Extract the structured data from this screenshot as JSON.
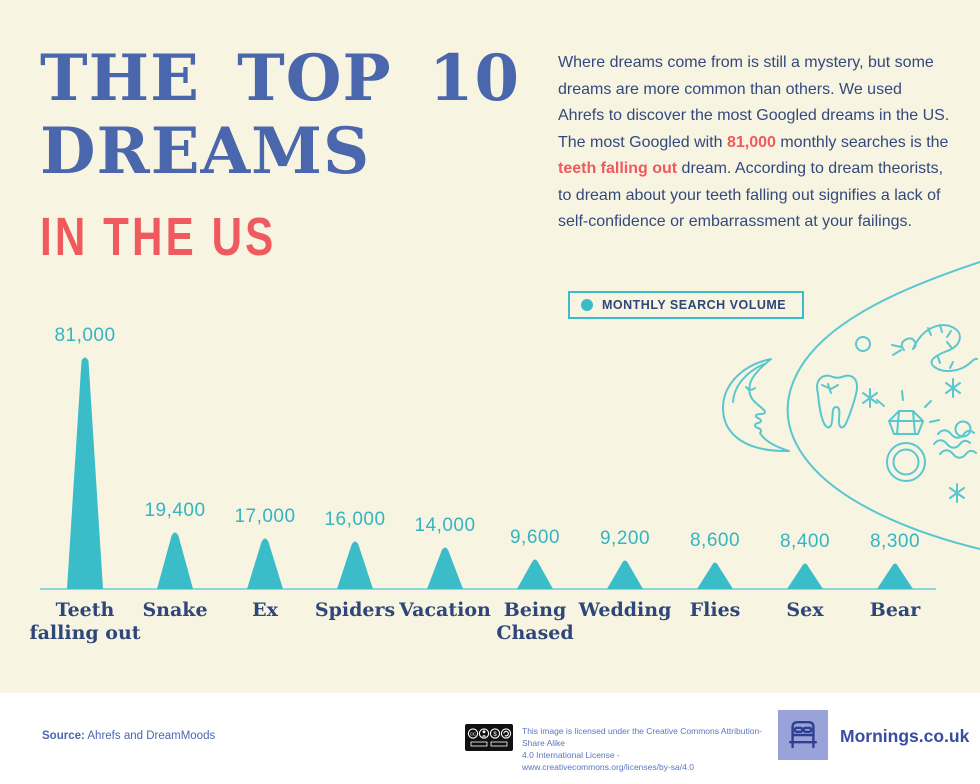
{
  "colors": {
    "background": "#f7f4e1",
    "footer_bg": "#ffffff",
    "title_blue": "#4a66ad",
    "accent_red": "#ee5a5e",
    "text_navy": "#2e4679",
    "teal": "#3bbcc9",
    "teal_line_art": "#5ac7d0",
    "brand_navy": "#3a4da0",
    "logo_periwinkle": "#99a3da",
    "license_blue": "#5b76c0"
  },
  "header": {
    "title_line1": "THE TOP 10",
    "title_line2": "DREAMS",
    "subtitle": "IN THE US"
  },
  "intro": {
    "p1": "Where dreams come from is still a mystery, but some dreams are more common than others. We used Ahrefs to discover the most Googled dreams in the US. The most Googled with ",
    "highlight1": "81,000",
    "p2": " monthly searches is the ",
    "highlight2": "teeth falling out",
    "p3": " dream. According to dream theorists, to dream about your teeth falling out signifies a lack of self-confidence or embarrassment at your failings."
  },
  "legend": {
    "label": "MONTHLY SEARCH VOLUME"
  },
  "chart_data": {
    "type": "bar",
    "shape": "triangle-peak",
    "title": "The Top 10 Dreams in the US",
    "series_name": "Monthly Search Volume",
    "categories": [
      "Teeth\nfalling out",
      "Snake",
      "Ex",
      "Spiders",
      "Vacation",
      "Being\nChased",
      "Wedding",
      "Flies",
      "Sex",
      "Bear"
    ],
    "values": [
      81000,
      19400,
      17000,
      16000,
      14000,
      9600,
      9200,
      8600,
      8400,
      8300
    ],
    "value_labels": [
      "81,000",
      "19,400",
      "17,000",
      "16,000",
      "14,000",
      "9,600",
      "9,200",
      "8,600",
      "8,400",
      "8,300"
    ],
    "color": "#3bbcc9",
    "baseline_color": "#8ed8dd",
    "ylim": [
      0,
      81000
    ],
    "grid": false,
    "legend_position": "top-right"
  },
  "decor": {
    "icons": [
      "dream-cloud",
      "crescent-moon",
      "tooth",
      "snake",
      "diamond-ring",
      "sparkle",
      "bubble",
      "waves"
    ]
  },
  "footer": {
    "source_label": "Source:",
    "source_text": "Ahrefs and DreamMoods",
    "license_line1": "This image is licensed under the Creative Commons Attribution-Share Alike",
    "license_line2": "4.0 International License - www.creativecommons.org/licenses/by-sa/4.0",
    "brand": "Mornings.co.uk"
  }
}
